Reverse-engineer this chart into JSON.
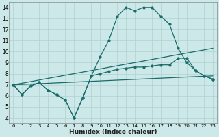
{
  "xlabel": "Humidex (Indice chaleur)",
  "bg_color": "#cce8e8",
  "grid_color": "#b0d0d0",
  "line_color": "#1a6b6b",
  "xlim": [
    -0.5,
    23.5
  ],
  "ylim": [
    3.5,
    14.5
  ],
  "xticks": [
    0,
    1,
    2,
    3,
    4,
    5,
    6,
    7,
    8,
    9,
    10,
    11,
    12,
    13,
    14,
    15,
    16,
    17,
    18,
    19,
    20,
    21,
    22,
    23
  ],
  "yticks": [
    4,
    5,
    6,
    7,
    8,
    9,
    10,
    11,
    12,
    13,
    14
  ],
  "curve1_x": [
    0,
    1,
    2,
    3,
    4,
    5,
    6,
    7,
    8,
    9,
    10,
    11,
    12,
    13,
    14,
    15,
    16,
    17,
    18,
    19,
    20,
    21,
    22,
    23
  ],
  "curve1_y": [
    7.0,
    6.1,
    6.9,
    7.2,
    6.5,
    6.1,
    5.6,
    4.0,
    5.8,
    7.8,
    9.5,
    11.0,
    13.2,
    14.0,
    13.7,
    14.0,
    14.0,
    13.2,
    12.5,
    10.3,
    9.0,
    8.3,
    7.8,
    7.5
  ],
  "curve2_x": [
    0,
    1,
    2,
    3,
    4,
    5,
    6,
    7,
    8,
    9,
    10,
    11,
    12,
    13,
    14,
    15,
    16,
    17,
    18,
    19,
    20,
    21,
    22,
    23
  ],
  "curve2_y": [
    7.0,
    6.1,
    6.9,
    7.2,
    6.5,
    6.1,
    5.6,
    4.0,
    5.8,
    7.8,
    8.0,
    8.2,
    8.4,
    8.5,
    8.6,
    8.6,
    8.7,
    8.8,
    8.8,
    9.4,
    9.4,
    8.3,
    7.8,
    7.5
  ],
  "line3_x": [
    0,
    23
  ],
  "line3_y": [
    7.0,
    7.8
  ],
  "line4_x": [
    0,
    23
  ],
  "line4_y": [
    7.0,
    10.3
  ]
}
